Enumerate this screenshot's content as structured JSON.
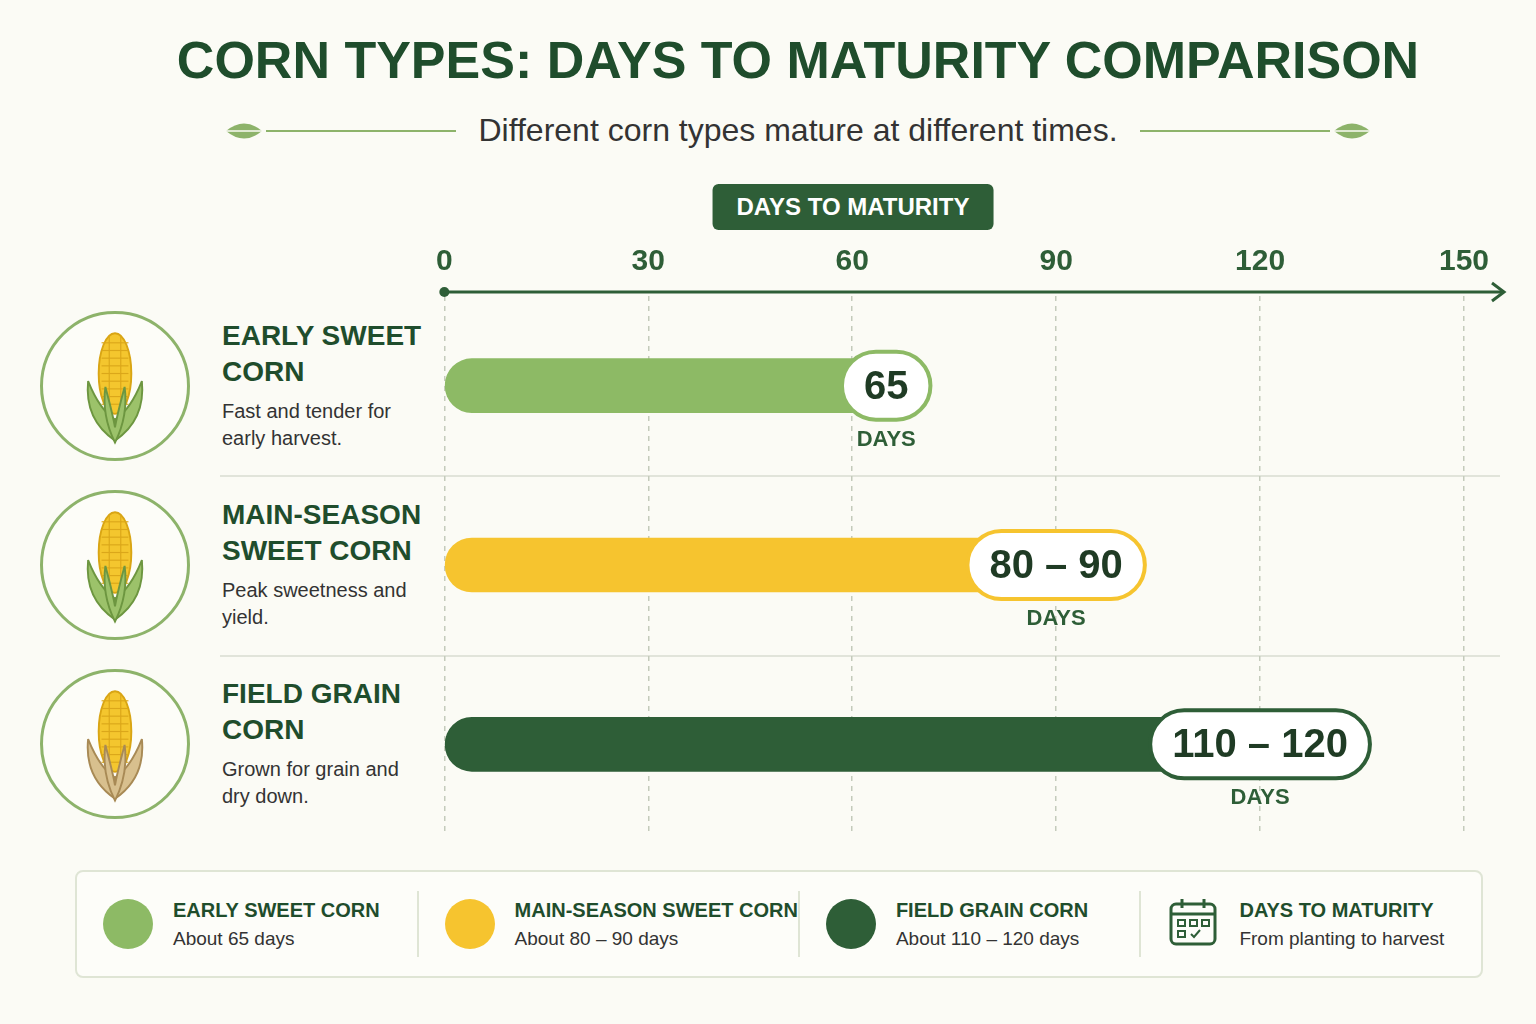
{
  "chart_data": {
    "type": "bar",
    "orientation": "horizontal",
    "title": "CORN TYPES: DAYS TO MATURITY COMPARISON",
    "subtitle": "Different corn types mature at different times.",
    "x_label": "DAYS TO MATURITY",
    "x_label_note": "From planting to harvest",
    "categories": [
      "EARLY SWEET CORN",
      "MAIN-SEASON SWEET CORN",
      "FIELD GRAIN CORN"
    ],
    "descriptions": [
      "Fast and tender for early harvest.",
      "Peak sweetness and yield.",
      "Grown for grain and dry down."
    ],
    "values": [
      [
        65,
        65
      ],
      [
        80,
        90
      ],
      [
        110,
        120
      ]
    ],
    "value_labels": [
      "65",
      "80 – 90",
      "110 – 120"
    ],
    "value_unit": "DAYS",
    "legend_notes": [
      "About 65 days",
      "About 80 – 90 days",
      "About 110 – 120 days"
    ],
    "colors": [
      "#8dba65",
      "#f6c42f",
      "#2e5e37"
    ],
    "xlim": [
      0,
      150
    ],
    "xticks": [
      0,
      30,
      60,
      90,
      120,
      150
    ],
    "grid": true,
    "data_labels": true,
    "legend": "bottom",
    "tick_labels": "x"
  }
}
